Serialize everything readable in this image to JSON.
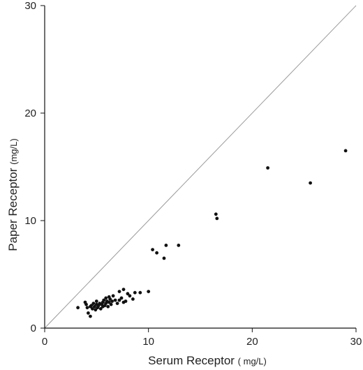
{
  "chart_data": {
    "type": "scatter",
    "title": "",
    "xlabel": "Serum Receptor",
    "xlabel_unit": "( mg/L)",
    "ylabel": "Paper Receptor",
    "ylabel_unit": "(mg/L)",
    "xlim": [
      0,
      30
    ],
    "ylim": [
      0,
      30
    ],
    "xticks": [
      0,
      10,
      20,
      30
    ],
    "yticks": [
      0,
      10,
      20,
      30
    ],
    "xtick_labels": [
      "0",
      "10",
      "20",
      "30"
    ],
    "ytick_labels": [
      "0",
      "10",
      "20",
      "30"
    ],
    "grid": false,
    "reference_line": {
      "from": [
        0,
        0
      ],
      "to": [
        30,
        30
      ]
    },
    "colors": {
      "points": "#111111",
      "reference_line": "#9a9a9a",
      "axes": "#111111"
    },
    "points": [
      [
        3.2,
        1.9
      ],
      [
        3.9,
        2.4
      ],
      [
        4.0,
        2.2
      ],
      [
        4.1,
        1.9
      ],
      [
        4.2,
        1.4
      ],
      [
        4.4,
        1.1
      ],
      [
        4.4,
        2.0
      ],
      [
        4.5,
        2.1
      ],
      [
        4.6,
        1.8
      ],
      [
        4.7,
        2.3
      ],
      [
        4.8,
        2.0
      ],
      [
        4.9,
        1.7
      ],
      [
        5.0,
        2.2
      ],
      [
        5.0,
        2.5
      ],
      [
        5.1,
        1.9
      ],
      [
        5.2,
        2.1
      ],
      [
        5.3,
        2.3
      ],
      [
        5.4,
        1.8
      ],
      [
        5.5,
        2.2
      ],
      [
        5.6,
        2.4
      ],
      [
        5.6,
        2.0
      ],
      [
        5.7,
        2.6
      ],
      [
        5.8,
        2.1
      ],
      [
        5.9,
        2.3
      ],
      [
        5.9,
        2.8
      ],
      [
        6.0,
        2.5
      ],
      [
        6.1,
        2.0
      ],
      [
        6.2,
        2.4
      ],
      [
        6.2,
        2.9
      ],
      [
        6.3,
        2.7
      ],
      [
        6.4,
        2.2
      ],
      [
        6.5,
        2.5
      ],
      [
        6.6,
        3.0
      ],
      [
        6.8,
        2.6
      ],
      [
        7.0,
        2.3
      ],
      [
        7.2,
        3.4
      ],
      [
        7.2,
        2.6
      ],
      [
        7.4,
        2.8
      ],
      [
        7.6,
        3.6
      ],
      [
        7.6,
        2.4
      ],
      [
        7.8,
        2.5
      ],
      [
        8.0,
        3.2
      ],
      [
        8.2,
        3.0
      ],
      [
        8.5,
        2.7
      ],
      [
        8.7,
        3.3
      ],
      [
        9.2,
        3.3
      ],
      [
        10.0,
        3.4
      ],
      [
        10.4,
        7.3
      ],
      [
        10.8,
        7.0
      ],
      [
        11.5,
        6.5
      ],
      [
        11.7,
        7.7
      ],
      [
        12.9,
        7.7
      ],
      [
        16.5,
        10.6
      ],
      [
        16.6,
        10.2
      ],
      [
        21.5,
        14.9
      ],
      [
        25.6,
        13.5
      ],
      [
        29.0,
        16.5
      ]
    ]
  }
}
